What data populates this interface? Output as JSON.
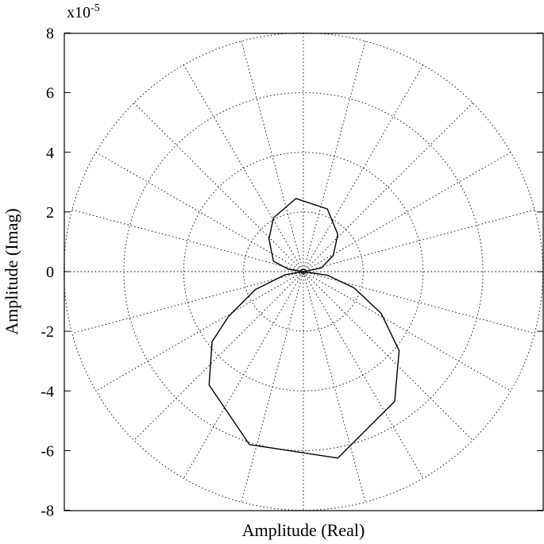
{
  "chart_data": {
    "type": "line",
    "subtype": "polar-nyquist",
    "xlabel": "Amplitude (Real)",
    "ylabel": "Amplitude (Imag)",
    "scale_multiplier": {
      "base": "x10",
      "exponent": "-5"
    },
    "xlim": [
      -8,
      8
    ],
    "ylim": [
      -8,
      8
    ],
    "y_ticks": [
      "8",
      "6",
      "4",
      "2",
      "0",
      "-2",
      "-4",
      "-6",
      "-8"
    ],
    "grid": {
      "type": "polar",
      "circle_radii": [
        2,
        4,
        6,
        8
      ],
      "radial_spacing_deg": 15
    },
    "series": [
      {
        "points": [
          [
            0,
            0
          ],
          [
            -0.5,
            0.08
          ],
          [
            -1.0,
            0.35
          ],
          [
            -1.15,
            1.1
          ],
          [
            -1.0,
            1.8
          ],
          [
            -0.25,
            2.45
          ],
          [
            0.8,
            2.1
          ],
          [
            1.15,
            1.25
          ],
          [
            1.0,
            0.55
          ],
          [
            0.6,
            0.12
          ],
          [
            0,
            0
          ],
          [
            -0.6,
            -0.1
          ],
          [
            -1.6,
            -0.6
          ],
          [
            -2.5,
            -1.5
          ],
          [
            -3.05,
            -2.35
          ],
          [
            -3.15,
            -3.8
          ],
          [
            -1.8,
            -5.8
          ],
          [
            1.15,
            -6.25
          ],
          [
            3.05,
            -4.35
          ],
          [
            3.2,
            -2.65
          ],
          [
            2.6,
            -1.4
          ],
          [
            1.7,
            -0.55
          ],
          [
            0.8,
            -0.12
          ],
          [
            0,
            0
          ]
        ]
      }
    ]
  }
}
